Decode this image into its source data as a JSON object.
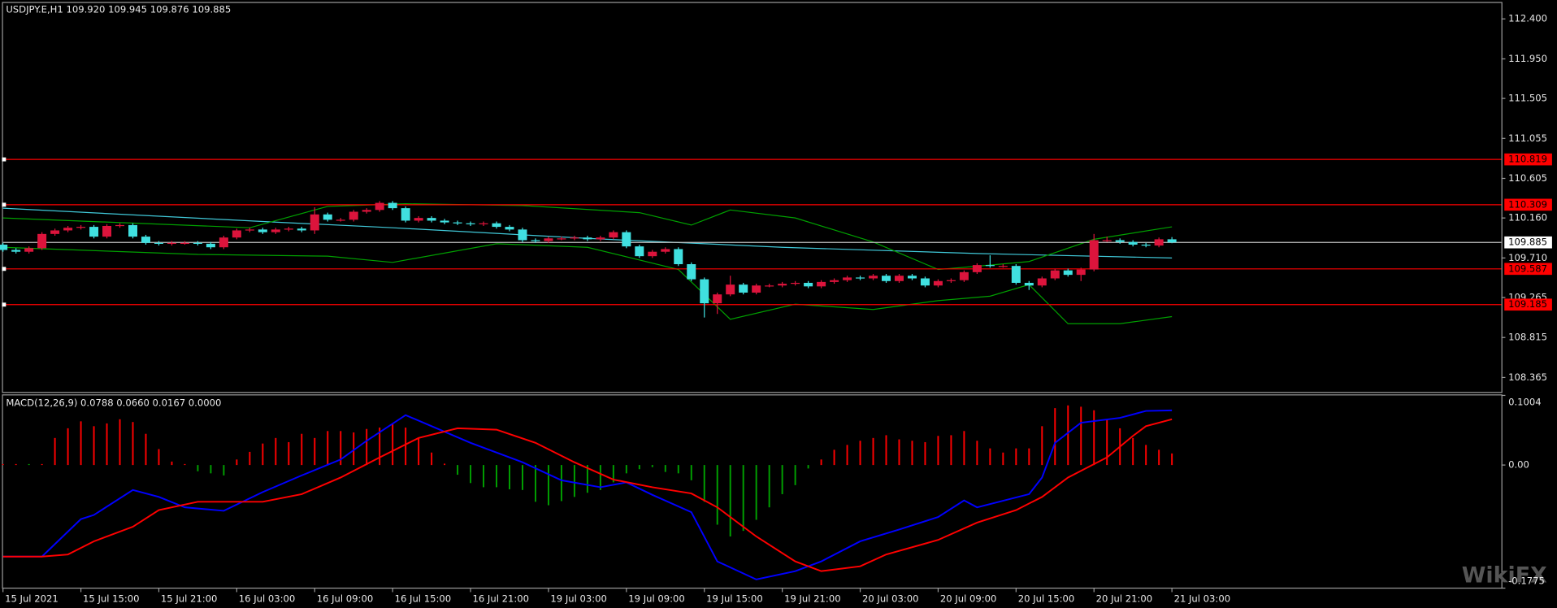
{
  "chart_data": [
    {
      "type": "candlestick",
      "title": "USDJPY.E,H1  109.920 109.945 109.876 109.885",
      "categories": [
        "15 Jul 2021",
        null,
        null,
        null,
        null,
        null,
        "15 Jul 15:00",
        null,
        null,
        null,
        null,
        null,
        "15 Jul 21:00",
        null,
        null,
        null,
        null,
        null,
        "16 Jul 03:00",
        null,
        null,
        null,
        null,
        null,
        "16 Jul 09:00",
        null,
        null,
        null,
        null,
        null,
        "16 Jul 15:00",
        null,
        null,
        null,
        null,
        null,
        "16 Jul 21:00",
        null,
        null,
        null,
        null,
        null,
        "19 Jul 03:00",
        null,
        null,
        null,
        null,
        null,
        "19 Jul 09:00",
        null,
        null,
        null,
        null,
        null,
        "19 Jul 15:00",
        null,
        null,
        null,
        null,
        null,
        "19 Jul 21:00",
        null,
        null,
        null,
        null,
        null,
        "20 Jul 03:00",
        null,
        null,
        null,
        null,
        null,
        "20 Jul 09:00",
        null,
        null,
        null,
        null,
        null,
        "20 Jul 15:00",
        null,
        null,
        null,
        null,
        null,
        "20 Jul 21:00",
        null,
        null,
        null,
        null,
        null,
        "21 Jul 03:00"
      ],
      "open": [
        109.86,
        109.8,
        109.78,
        109.82,
        109.98,
        110.02,
        110.05,
        110.06,
        109.95,
        110.07,
        110.08,
        109.95,
        109.88,
        109.87,
        109.88,
        109.88,
        109.87,
        109.83,
        109.94,
        110.02,
        110.03,
        110.0,
        110.03,
        110.04,
        110.02,
        110.2,
        110.14,
        110.14,
        110.23,
        110.25,
        110.33,
        110.27,
        110.13,
        110.16,
        110.13,
        110.11,
        110.1,
        110.09,
        110.1,
        110.06,
        110.03,
        109.91,
        109.9,
        109.93,
        109.93,
        109.94,
        109.92,
        109.94,
        110.0,
        109.84,
        109.73,
        109.78,
        109.81,
        109.64,
        109.47,
        109.2,
        109.3,
        109.41,
        109.32,
        109.4,
        109.4,
        109.42,
        109.43,
        109.39,
        109.44,
        109.46,
        109.49,
        109.48,
        109.51,
        109.45,
        109.51,
        109.48,
        109.4,
        109.45,
        109.46,
        109.55,
        109.63,
        109.62,
        109.62,
        109.43,
        109.4,
        109.48,
        109.57,
        109.52,
        109.58,
        109.91,
        109.91,
        109.89,
        109.86,
        109.85,
        109.92
      ],
      "high": [
        109.88,
        109.82,
        109.84,
        110.0,
        110.04,
        110.07,
        110.08,
        110.08,
        110.09,
        110.1,
        110.1,
        109.97,
        109.9,
        109.9,
        109.9,
        109.9,
        109.89,
        109.96,
        110.04,
        110.05,
        110.05,
        110.05,
        110.06,
        110.06,
        110.28,
        110.22,
        110.16,
        110.25,
        110.27,
        110.35,
        110.35,
        110.29,
        110.18,
        110.18,
        110.15,
        110.13,
        110.12,
        110.12,
        110.12,
        110.08,
        110.05,
        109.93,
        109.95,
        109.95,
        109.96,
        109.96,
        109.96,
        110.02,
        110.02,
        109.86,
        109.8,
        109.83,
        109.83,
        109.66,
        109.49,
        109.32,
        109.51,
        109.43,
        109.42,
        109.42,
        109.44,
        109.45,
        109.45,
        109.46,
        109.48,
        109.51,
        109.51,
        109.53,
        109.53,
        109.53,
        109.53,
        109.5,
        109.47,
        109.48,
        109.57,
        109.65,
        109.74,
        109.64,
        109.64,
        109.45,
        109.5,
        109.59,
        109.59,
        109.6,
        109.98,
        109.95,
        109.93,
        109.91,
        109.88,
        109.94,
        109.945
      ],
      "low": [
        109.78,
        109.76,
        109.76,
        109.8,
        109.96,
        110.0,
        110.03,
        109.93,
        109.93,
        110.05,
        109.93,
        109.86,
        109.85,
        109.85,
        109.86,
        109.85,
        109.81,
        109.81,
        109.92,
        110.0,
        109.98,
        109.98,
        110.01,
        110.0,
        109.98,
        110.12,
        110.12,
        110.12,
        110.21,
        110.23,
        110.25,
        110.11,
        110.11,
        110.11,
        110.09,
        110.08,
        110.07,
        110.07,
        110.04,
        110.01,
        109.89,
        109.88,
        109.88,
        109.91,
        109.91,
        109.9,
        109.9,
        109.92,
        109.82,
        109.71,
        109.71,
        109.76,
        109.62,
        109.45,
        109.04,
        109.08,
        109.28,
        109.3,
        109.3,
        109.38,
        109.38,
        109.4,
        109.37,
        109.37,
        109.42,
        109.44,
        109.46,
        109.46,
        109.43,
        109.43,
        109.46,
        109.38,
        109.38,
        109.43,
        109.44,
        109.53,
        109.6,
        109.6,
        109.41,
        109.35,
        109.38,
        109.46,
        109.5,
        109.45,
        109.56,
        109.89,
        109.87,
        109.84,
        109.83,
        109.83,
        109.876
      ],
      "close": [
        109.8,
        109.78,
        109.82,
        109.98,
        110.02,
        110.05,
        110.06,
        109.95,
        110.07,
        110.08,
        109.95,
        109.88,
        109.87,
        109.88,
        109.88,
        109.87,
        109.83,
        109.94,
        110.02,
        110.03,
        110.0,
        110.03,
        110.04,
        110.02,
        110.2,
        110.14,
        110.14,
        110.23,
        110.25,
        110.33,
        110.27,
        110.13,
        110.16,
        110.13,
        110.11,
        110.1,
        110.09,
        110.1,
        110.06,
        110.03,
        109.91,
        109.9,
        109.93,
        109.93,
        109.94,
        109.92,
        109.94,
        110.0,
        109.84,
        109.73,
        109.78,
        109.81,
        109.64,
        109.47,
        109.2,
        109.3,
        109.41,
        109.32,
        109.4,
        109.4,
        109.42,
        109.43,
        109.39,
        109.44,
        109.46,
        109.49,
        109.48,
        109.51,
        109.45,
        109.51,
        109.48,
        109.4,
        109.45,
        109.46,
        109.55,
        109.63,
        109.62,
        109.62,
        109.43,
        109.4,
        109.48,
        109.57,
        109.52,
        109.58,
        109.91,
        109.91,
        109.89,
        109.86,
        109.85,
        109.92,
        109.885
      ],
      "up_color": "#dc143c",
      "down_color": "#40e0e0",
      "overlays": [
        {
          "color": "#40c8d8",
          "x": [
            0,
            20,
            30,
            45,
            60,
            75,
            90
          ],
          "values": [
            110.27,
            110.12,
            110.05,
            109.93,
            109.83,
            109.76,
            109.71
          ]
        },
        {
          "color": "#00a000",
          "x": [
            0,
            19,
            25,
            31,
            40,
            49,
            53,
            56,
            61,
            67,
            72,
            76,
            79,
            84,
            90
          ],
          "values": [
            110.16,
            110.05,
            110.29,
            110.32,
            110.3,
            110.22,
            110.08,
            110.25,
            110.16,
            109.89,
            109.58,
            109.63,
            109.67,
            109.92,
            110.06
          ]
        },
        {
          "color": "#00a000",
          "x": [
            0,
            15,
            25,
            30,
            38,
            45,
            52,
            56,
            61,
            67,
            72,
            76,
            79,
            82,
            86,
            90
          ],
          "values": [
            109.83,
            109.75,
            109.73,
            109.66,
            109.87,
            109.83,
            109.58,
            109.02,
            109.19,
            109.13,
            109.23,
            109.28,
            109.41,
            108.97,
            108.97,
            109.05
          ]
        }
      ],
      "levels": [
        110.819,
        110.309,
        109.587,
        109.185
      ],
      "level_color": "#ff0000",
      "bid": 109.885,
      "bid_color": "#c0c0c0",
      "ylim": [
        108.197,
        112.579
      ],
      "yticks": [
        {
          "value": 112.4,
          "label": "112.400"
        },
        {
          "value": 111.95,
          "label": "111.950"
        },
        111.505,
        111.055,
        110.605,
        {
          "value": 110.16,
          "label": "110.160"
        },
        {
          "value": 109.71,
          "label": "109.710"
        },
        109.265,
        108.815,
        108.365
      ],
      "grid": false
    },
    {
      "type": "macd",
      "title": "MACD(12,26,9) 0.0788 0.0660 0.0167 0.0000",
      "histogram": [
        0.001,
        0.001,
        -0.001,
        0.001,
        0.039,
        0.053,
        0.063,
        0.056,
        0.06,
        0.066,
        0.062,
        0.045,
        0.023,
        0.005,
        0.001,
        -0.009,
        -0.012,
        -0.015,
        0.008,
        0.019,
        0.031,
        0.039,
        0.033,
        0.045,
        0.039,
        0.049,
        0.049,
        0.047,
        0.052,
        0.054,
        0.06,
        0.054,
        0.039,
        0.018,
        0.002,
        -0.014,
        -0.026,
        -0.032,
        -0.032,
        -0.035,
        -0.036,
        -0.053,
        -0.058,
        -0.052,
        -0.046,
        -0.04,
        -0.036,
        -0.025,
        -0.012,
        -0.006,
        -0.003,
        -0.01,
        -0.012,
        -0.022,
        -0.053,
        -0.086,
        -0.103,
        -0.095,
        -0.079,
        -0.061,
        -0.042,
        -0.029,
        -0.005,
        0.008,
        0.022,
        0.029,
        0.035,
        0.039,
        0.043,
        0.037,
        0.035,
        0.033,
        0.042,
        0.043,
        0.049,
        0.035,
        0.024,
        0.018,
        0.024,
        0.024,
        0.056,
        0.082,
        0.086,
        0.084,
        0.079,
        0.065,
        0.053,
        0.039,
        0.029,
        0.022,
        0.0167
      ],
      "pos_color": "#ff0000",
      "neg_color": "#00a000",
      "lines": [
        {
          "color": "#0000ff",
          "x": [
            0,
            3,
            6,
            7,
            10,
            12,
            14,
            17,
            20,
            23,
            26,
            28,
            31,
            33,
            36,
            40,
            43,
            46,
            48,
            50,
            53,
            55,
            58,
            61,
            63,
            66,
            69,
            72,
            74,
            75,
            79,
            80,
            81,
            83,
            86,
            88,
            90
          ],
          "values": [
            -0.132,
            -0.132,
            -0.078,
            -0.072,
            -0.036,
            -0.046,
            -0.061,
            -0.066,
            -0.039,
            -0.015,
            0.008,
            0.035,
            0.072,
            0.056,
            0.032,
            0.004,
            -0.022,
            -0.032,
            -0.025,
            -0.043,
            -0.068,
            -0.139,
            -0.165,
            -0.153,
            -0.139,
            -0.11,
            -0.093,
            -0.075,
            -0.051,
            -0.061,
            -0.042,
            -0.018,
            0.032,
            0.061,
            0.068,
            0.078,
            0.0788
          ]
        },
        {
          "color": "#ff0000",
          "x": [
            0,
            3,
            5,
            7,
            10,
            12,
            15,
            20,
            23,
            26,
            29,
            32,
            35,
            38,
            41,
            44,
            47,
            50,
            53,
            55,
            58,
            61,
            63,
            66,
            68,
            72,
            75,
            78,
            80,
            82,
            85,
            87,
            88,
            90
          ],
          "values": [
            -0.132,
            -0.132,
            -0.129,
            -0.11,
            -0.089,
            -0.065,
            -0.053,
            -0.053,
            -0.042,
            -0.018,
            0.011,
            0.039,
            0.053,
            0.051,
            0.032,
            0.004,
            -0.021,
            -0.032,
            -0.041,
            -0.061,
            -0.103,
            -0.139,
            -0.153,
            -0.146,
            -0.129,
            -0.108,
            -0.083,
            -0.065,
            -0.046,
            -0.018,
            0.011,
            0.042,
            0.056,
            0.066
          ]
        }
      ],
      "ylim": [
        -0.1775,
        0.1004
      ],
      "yticks": [
        0.1004,
        {
          "value": 0,
          "label": "0.00"
        },
        -0.1775
      ]
    }
  ],
  "watermark": "WikiFX"
}
